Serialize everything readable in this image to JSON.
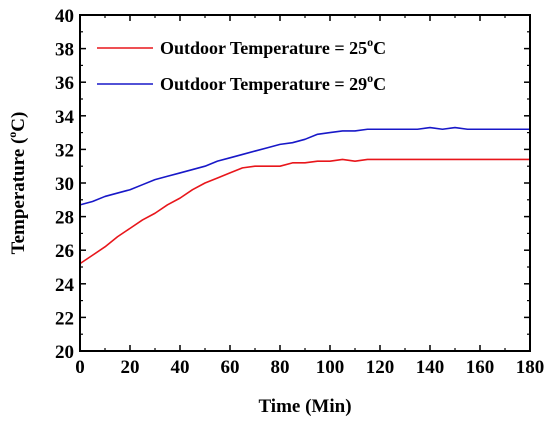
{
  "chart_data": {
    "type": "line",
    "title": "",
    "xlabel": "Time (Min)",
    "ylabel": "Temperature (",
    "ylabel_sup": "o",
    "ylabel_tail": "C)",
    "xlim": [
      0,
      180
    ],
    "ylim": [
      20,
      40
    ],
    "xticks": [
      0,
      20,
      40,
      60,
      80,
      100,
      120,
      140,
      160,
      180
    ],
    "yticks": [
      20,
      22,
      24,
      26,
      28,
      30,
      32,
      34,
      36,
      38,
      40
    ],
    "grid": false,
    "legend_position": "top-left",
    "series": [
      {
        "name_main": "Outdoor Temperature = 25",
        "name_sup": "o",
        "name_tail": "C",
        "color": "#e8161b",
        "x": [
          0,
          5,
          10,
          15,
          20,
          25,
          30,
          35,
          40,
          45,
          50,
          55,
          60,
          65,
          70,
          75,
          80,
          85,
          90,
          95,
          100,
          105,
          110,
          115,
          120,
          130,
          140,
          150,
          160,
          170,
          180
        ],
        "y": [
          25.2,
          25.7,
          26.2,
          26.8,
          27.3,
          27.8,
          28.2,
          28.7,
          29.1,
          29.6,
          30.0,
          30.3,
          30.6,
          30.9,
          31.0,
          31.0,
          31.0,
          31.2,
          31.2,
          31.3,
          31.3,
          31.4,
          31.3,
          31.4,
          31.4,
          31.4,
          31.4,
          31.4,
          31.4,
          31.4,
          31.4
        ]
      },
      {
        "name_main": "Outdoor Temperature = 29",
        "name_sup": "o",
        "name_tail": "C",
        "color": "#1818c8",
        "x": [
          0,
          5,
          10,
          15,
          20,
          25,
          30,
          35,
          40,
          45,
          50,
          55,
          60,
          65,
          70,
          75,
          80,
          85,
          90,
          95,
          100,
          105,
          110,
          115,
          120,
          125,
          130,
          135,
          140,
          145,
          150,
          155,
          160,
          170,
          180
        ],
        "y": [
          28.7,
          28.9,
          29.2,
          29.4,
          29.6,
          29.9,
          30.2,
          30.4,
          30.6,
          30.8,
          31.0,
          31.3,
          31.5,
          31.7,
          31.9,
          32.1,
          32.3,
          32.4,
          32.6,
          32.9,
          33.0,
          33.1,
          33.1,
          33.2,
          33.2,
          33.2,
          33.2,
          33.2,
          33.3,
          33.2,
          33.3,
          33.2,
          33.2,
          33.2,
          33.2
        ]
      }
    ]
  }
}
